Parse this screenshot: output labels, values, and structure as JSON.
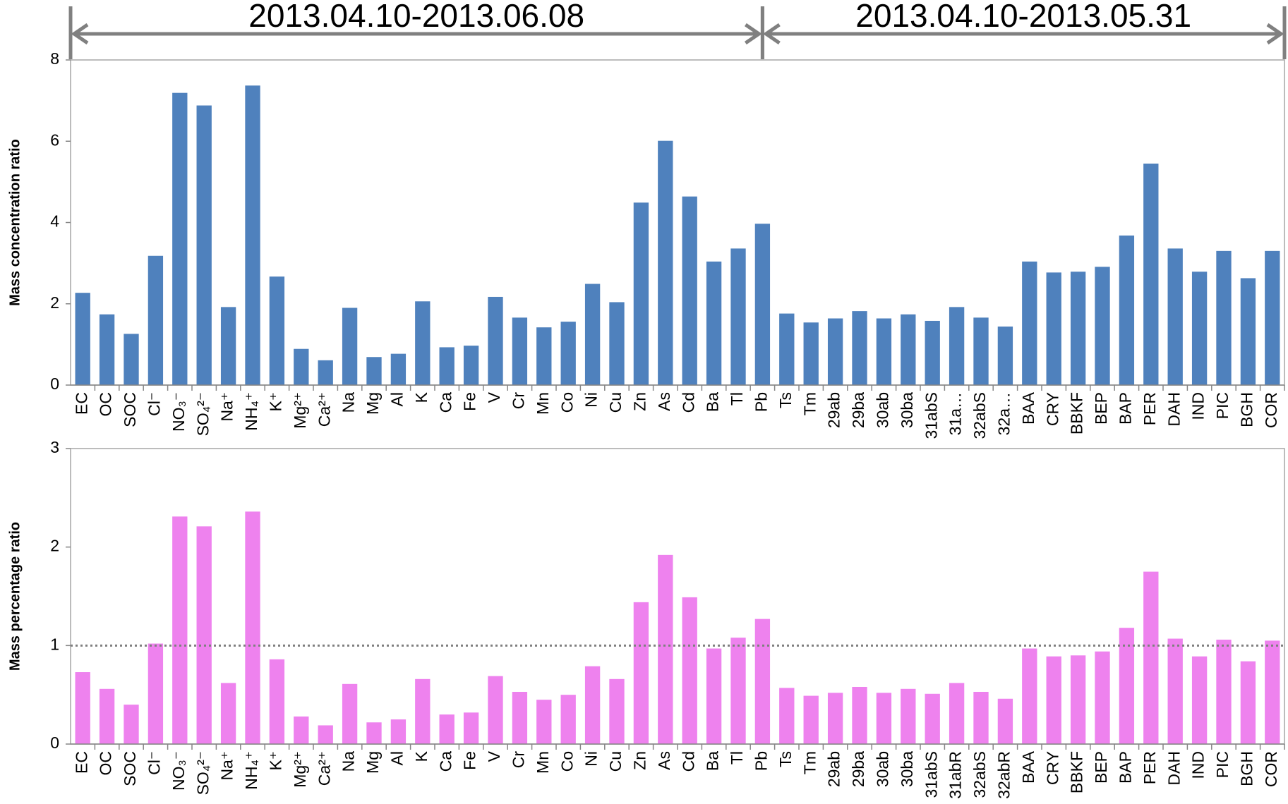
{
  "header": {
    "spans": [
      {
        "label": "2013.04.10-2013.06.08",
        "from": "EC",
        "to": "Pb"
      },
      {
        "label": "2013.04.10-2013.05.31",
        "from": "Pb",
        "to": "COR"
      }
    ]
  },
  "chart_data": [
    {
      "type": "bar",
      "y_label": "Mass concentration ratio",
      "color": "#4f81bd",
      "categories": [
        "EC",
        "OC",
        "SOC",
        "Cl⁻",
        "NO₃⁻",
        "SO₄²⁻",
        "Na⁺",
        "NH₄⁺",
        "K⁺",
        "Mg²⁺",
        "Ca²⁺",
        "Na",
        "Mg",
        "Al",
        "K",
        "Ca",
        "Fe",
        "V",
        "Cr",
        "Mn",
        "Co",
        "Ni",
        "Cu",
        "Zn",
        "As",
        "Cd",
        "Ba",
        "Tl",
        "Pb",
        "Ts",
        "Tm",
        "29ab",
        "29ba",
        "30ab",
        "30ba",
        "31abS",
        "31a…",
        "32abS",
        "32a…",
        "BAA",
        "CRY",
        "BBKF",
        "BEP",
        "BAP",
        "PER",
        "DAH",
        "IND",
        "PIC",
        "BGH",
        "COR"
      ],
      "values": [
        2.27,
        1.74,
        1.26,
        3.18,
        7.19,
        6.88,
        1.92,
        7.37,
        2.67,
        0.89,
        0.61,
        1.9,
        0.69,
        0.77,
        2.06,
        0.93,
        0.97,
        2.17,
        1.66,
        1.42,
        1.56,
        2.49,
        2.04,
        4.49,
        6.01,
        4.64,
        3.04,
        3.36,
        3.97,
        1.76,
        1.54,
        1.64,
        1.82,
        1.64,
        1.74,
        1.58,
        1.92,
        1.66,
        1.44,
        3.04,
        2.77,
        2.79,
        2.91,
        3.68,
        5.45,
        3.36,
        2.79,
        3.3,
        2.63,
        3.3
      ],
      "ylim": [
        0,
        8
      ],
      "yticks": [
        0,
        2,
        4,
        6,
        8
      ]
    },
    {
      "type": "bar",
      "y_label": "Mass percentage ratio",
      "color": "#ee82ee",
      "categories": [
        "EC",
        "OC",
        "SOC",
        "Cl⁻",
        "NO₃⁻",
        "SO₄²⁻",
        "Na⁺",
        "NH₄⁺",
        "K⁺",
        "Mg²⁺",
        "Ca²⁺",
        "Na",
        "Mg",
        "Al",
        "K",
        "Ca",
        "Fe",
        "V",
        "Cr",
        "Mn",
        "Co",
        "Ni",
        "Cu",
        "Zn",
        "As",
        "Cd",
        "Ba",
        "Tl",
        "Pb",
        "Ts",
        "Tm",
        "29ab",
        "29ba",
        "30ab",
        "30ba",
        "31abS",
        "31abR",
        "32abS",
        "32abR",
        "BAA",
        "CRY",
        "BBKF",
        "BEP",
        "BAP",
        "PER",
        "DAH",
        "IND",
        "PIC",
        "BGH",
        "COR"
      ],
      "values": [
        0.73,
        0.56,
        0.4,
        1.02,
        2.31,
        2.21,
        0.62,
        2.36,
        0.86,
        0.28,
        0.19,
        0.61,
        0.22,
        0.25,
        0.66,
        0.3,
        0.32,
        0.69,
        0.53,
        0.45,
        0.5,
        0.79,
        0.66,
        1.44,
        1.92,
        1.49,
        0.97,
        1.08,
        1.27,
        0.57,
        0.49,
        0.52,
        0.58,
        0.52,
        0.56,
        0.51,
        0.62,
        0.53,
        0.46,
        0.97,
        0.89,
        0.9,
        0.94,
        1.18,
        1.75,
        1.07,
        0.89,
        1.06,
        0.84,
        1.05
      ],
      "ylim": [
        0,
        3
      ],
      "yticks": [
        0,
        1,
        2,
        3
      ],
      "reference_line": 1
    }
  ]
}
